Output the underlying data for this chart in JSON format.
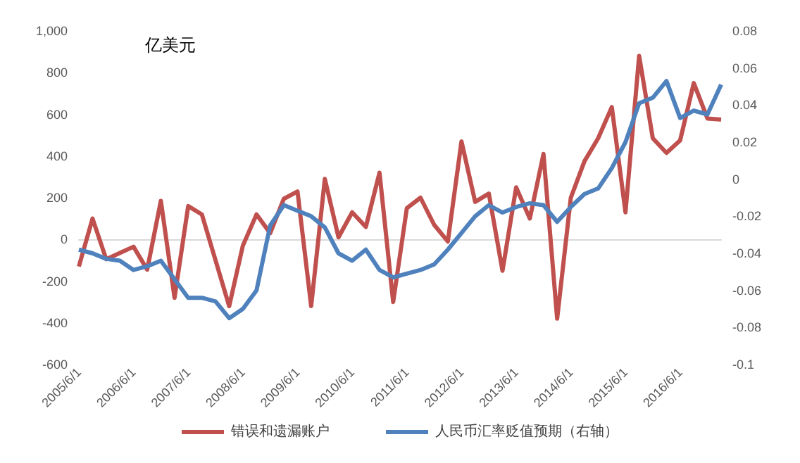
{
  "chart_data": {
    "type": "line",
    "ylabel": "亿美元",
    "categories": [
      "2005/6/1",
      null,
      null,
      null,
      "2006/6/1",
      null,
      null,
      null,
      "2007/6/1",
      null,
      null,
      null,
      "2008/6/1",
      null,
      null,
      null,
      "2009/6/1",
      null,
      null,
      null,
      "2010/6/1",
      null,
      null,
      null,
      "2011/6/1",
      null,
      null,
      null,
      "2012/6/1",
      null,
      null,
      null,
      "2013/6/1",
      null,
      null,
      null,
      "2014/6/1",
      null,
      null,
      null,
      "2015/6/1",
      null,
      null,
      null,
      "2016/6/1",
      null,
      null,
      null
    ],
    "series": [
      {
        "name": "错误和遗漏账户",
        "color": "#c0504d",
        "values": [
          -130,
          100,
          -95,
          -65,
          -35,
          -145,
          185,
          -280,
          160,
          120,
          -100,
          -320,
          -30,
          120,
          30,
          195,
          230,
          -320,
          290,
          10,
          130,
          60,
          320,
          -300,
          150,
          200,
          70,
          -10,
          470,
          180,
          220,
          -150,
          250,
          100,
          410,
          -380,
          200,
          375,
          485,
          635,
          130,
          880,
          485,
          415,
          475,
          750,
          580,
          575
        ]
      },
      {
        "name": "人民币汇率贬值预期（右轴）",
        "color": "#4f81bd",
        "axis": "y2",
        "values": [
          -0.038,
          -0.04,
          -0.043,
          -0.044,
          -0.049,
          -0.047,
          -0.044,
          -0.054,
          -0.064,
          -0.064,
          -0.066,
          -0.075,
          -0.07,
          -0.06,
          -0.025,
          -0.014,
          -0.017,
          -0.02,
          -0.026,
          -0.04,
          -0.044,
          -0.038,
          -0.049,
          -0.053,
          -0.051,
          -0.049,
          -0.046,
          -0.038,
          -0.029,
          -0.02,
          -0.014,
          -0.018,
          -0.015,
          -0.013,
          -0.014,
          -0.023,
          -0.015,
          -0.008,
          -0.005,
          0.006,
          0.02,
          0.041,
          0.044,
          0.053,
          0.033,
          0.037,
          0.035,
          0.051
        ]
      }
    ],
    "ylim": [
      -600,
      1000
    ],
    "yticks": [
      -600,
      -400,
      -200,
      0,
      200,
      400,
      600,
      800,
      {
        "value": 1000,
        "label": "1,000"
      }
    ],
    "y2lim": [
      -0.1,
      0.08
    ],
    "y2ticks": [
      -0.1,
      -0.08,
      -0.06,
      -0.04,
      -0.02,
      0,
      0.02,
      0.04,
      0.06,
      0.08
    ],
    "legend": "bottom",
    "marker": "none"
  }
}
